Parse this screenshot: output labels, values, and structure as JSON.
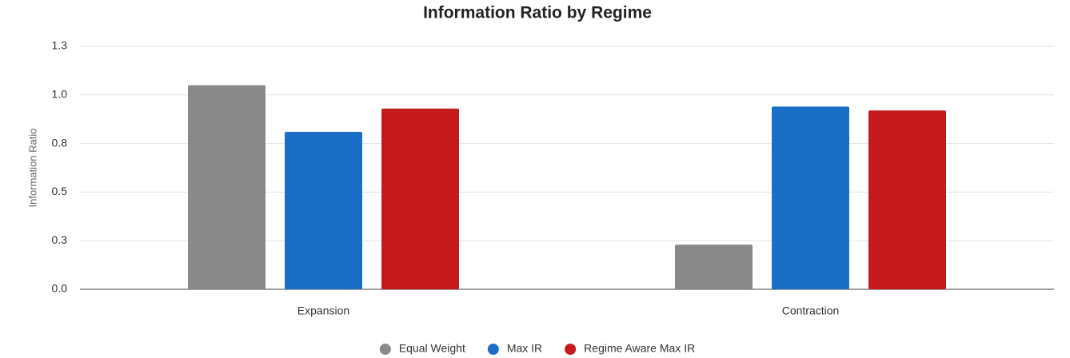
{
  "chart_data": {
    "type": "bar",
    "title": "Information Ratio by Regime",
    "y_label": "Information Ratio",
    "categories": [
      "Expansion",
      "Contraction"
    ],
    "series": [
      {
        "name": "Equal Weight",
        "color": "#898989",
        "values": [
          1.05,
          0.23
        ]
      },
      {
        "name": "Max IR",
        "color": "#1b6ec6",
        "values": [
          0.81,
          0.94
        ]
      },
      {
        "name": "Regime Aware Max IR",
        "color": "#c41a1b",
        "values": [
          0.93,
          0.92
        ]
      }
    ],
    "ylim": [
      0,
      1.25
    ],
    "yticks": [
      {
        "value": 0,
        "label": "0.0"
      },
      {
        "value": 0.25,
        "label": "0.3"
      },
      {
        "value": 0.5,
        "label": "0.5"
      },
      {
        "value": 0.75,
        "label": "0.8"
      },
      {
        "value": 1.0,
        "label": "1.0"
      },
      {
        "value": 1.25,
        "label": "1.3"
      }
    ],
    "grid": true,
    "legend": "bottom"
  }
}
